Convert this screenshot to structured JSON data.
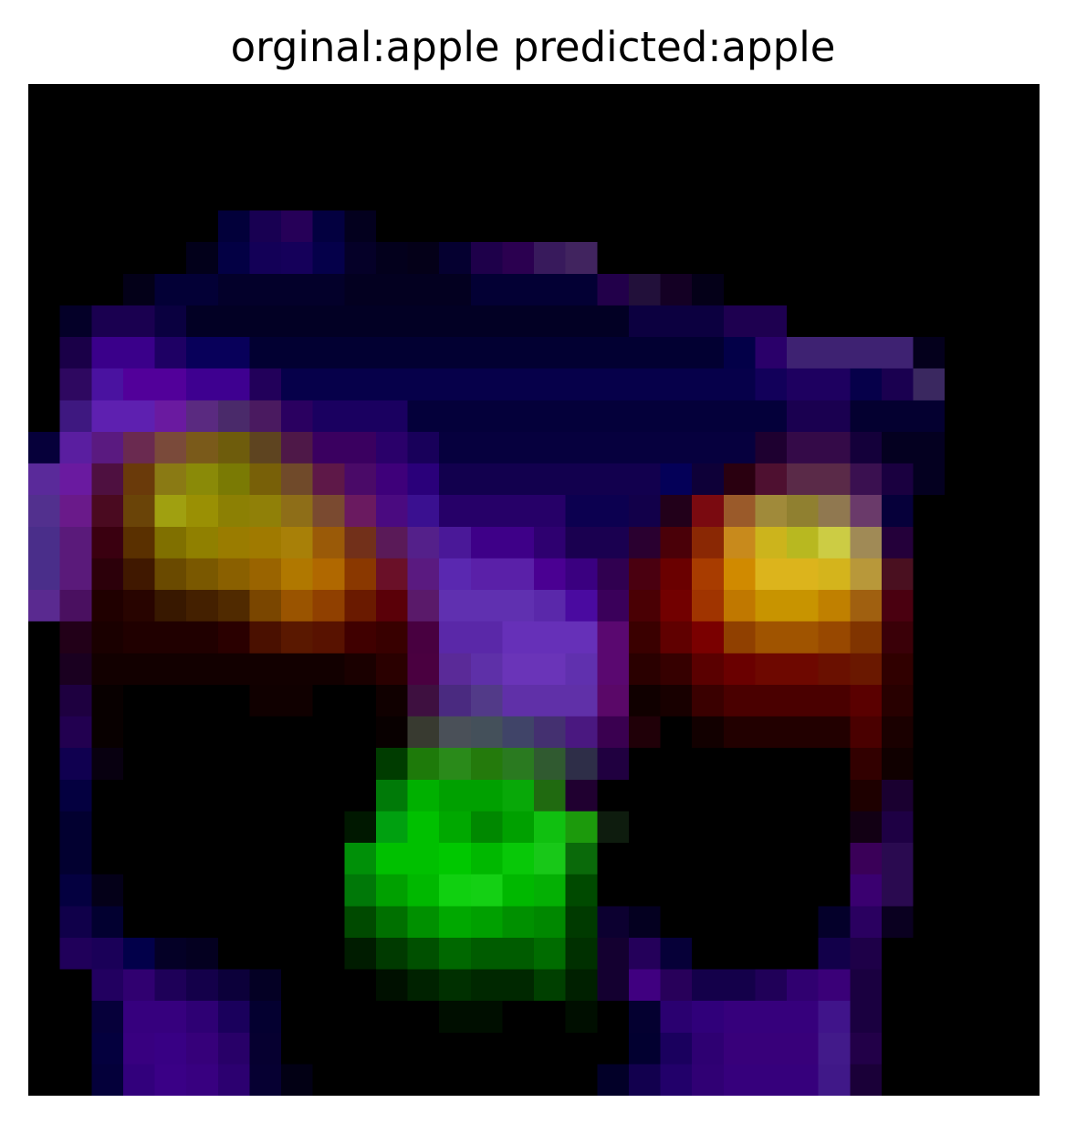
{
  "figure": {
    "title": "orginal:apple predicted:apple",
    "image_description_icon": "pixelated-heatmap-image",
    "background_color": "#000000"
  }
}
